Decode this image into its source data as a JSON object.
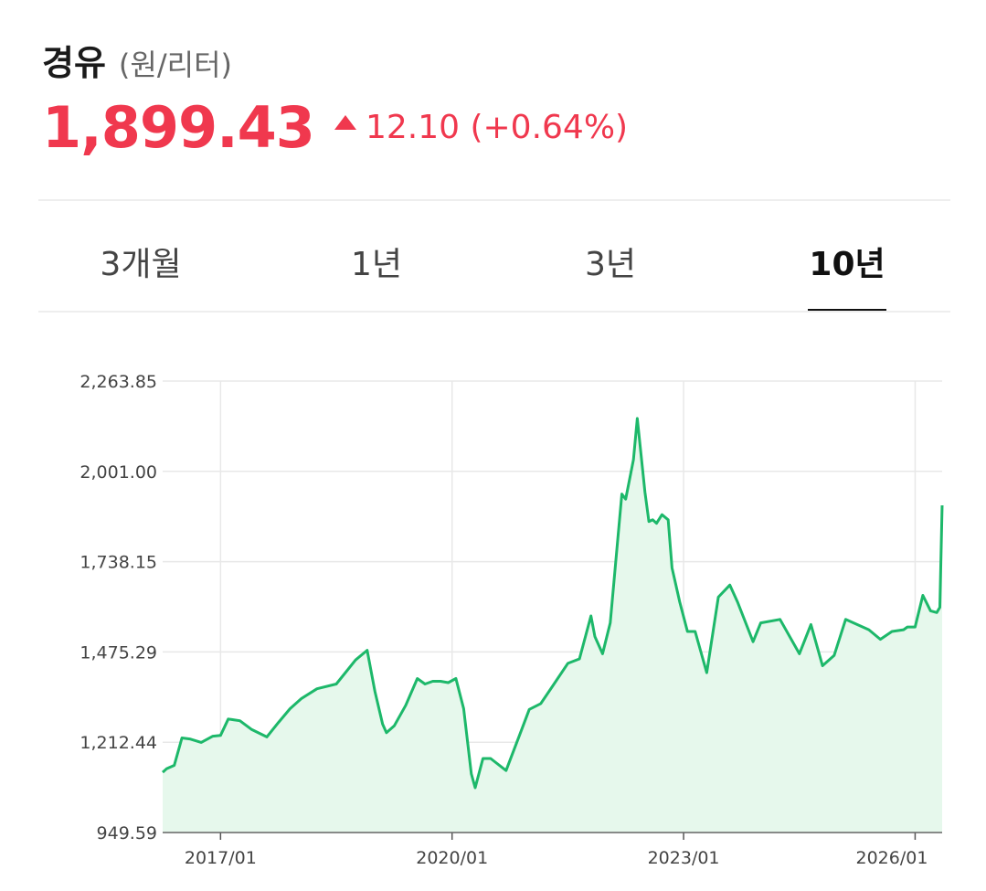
{
  "header": {
    "title": "경유",
    "unit": "(원/리터)",
    "price": "1,899.43",
    "change": "12.10 (+0.64%)"
  },
  "tabs": [
    {
      "label": "3개월",
      "active": false
    },
    {
      "label": "1년",
      "active": false
    },
    {
      "label": "3년",
      "active": false
    },
    {
      "label": "10년",
      "active": true
    }
  ],
  "colors": {
    "accent_up": "#f0384e",
    "line": "#1db86a",
    "fill": "#e6f8ec"
  },
  "chart_data": {
    "type": "area",
    "title": "",
    "xlabel": "",
    "ylabel": "",
    "ylim": [
      949.59,
      2263.85
    ],
    "xlim": [
      2016.25,
      2026.35
    ],
    "y_ticks": [
      "2,263.85",
      "2,001.00",
      "1,738.15",
      "1,475.29",
      "1,212.44",
      "949.59"
    ],
    "y_tick_values": [
      2263.85,
      2001.0,
      1738.15,
      1475.29,
      1212.44,
      949.59
    ],
    "x_ticks": [
      "2017/01",
      "2020/01",
      "2023/01",
      "2026/01"
    ],
    "x_tick_values": [
      2017.0,
      2020.0,
      2023.0,
      2026.0
    ],
    "grid": true,
    "series": [
      {
        "x": [
          2016.25,
          2016.3,
          2016.4,
          2016.5,
          2016.6,
          2016.75,
          2016.9,
          2017.0,
          2017.1,
          2017.25,
          2017.4,
          2017.6,
          2017.75,
          2017.9,
          2018.05,
          2018.25,
          2018.5,
          2018.75,
          2018.9,
          2019.0,
          2019.1,
          2019.15,
          2019.25,
          2019.4,
          2019.55,
          2019.65,
          2019.75,
          2019.85,
          2019.95,
          2020.05,
          2020.15,
          2020.25,
          2020.3,
          2020.4,
          2020.5,
          2020.7,
          2020.9,
          2021.0,
          2021.15,
          2021.3,
          2021.5,
          2021.65,
          2021.8,
          2021.85,
          2021.95,
          2022.05,
          2022.2,
          2022.25,
          2022.35,
          2022.4,
          2022.5,
          2022.55,
          2022.6,
          2022.65,
          2022.72,
          2022.8,
          2022.85,
          2022.95,
          2023.05,
          2023.15,
          2023.3,
          2023.45,
          2023.6,
          2023.7,
          2023.9,
          2024.0,
          2024.25,
          2024.5,
          2024.65,
          2024.8,
          2024.95,
          2025.1,
          2025.4,
          2025.55,
          2025.7,
          2025.85,
          2025.9,
          2026.0,
          2026.1,
          2026.2,
          2026.28,
          2026.32,
          2026.35
        ],
        "y": [
          1125,
          1135,
          1145,
          1225,
          1222,
          1212,
          1230,
          1232,
          1280,
          1275,
          1250,
          1228,
          1270,
          1310,
          1340,
          1368,
          1382,
          1452,
          1480,
          1360,
          1265,
          1240,
          1260,
          1320,
          1398,
          1382,
          1390,
          1390,
          1386,
          1398,
          1310,
          1120,
          1080,
          1165,
          1165,
          1130,
          1248,
          1308,
          1325,
          1375,
          1442,
          1455,
          1580,
          1520,
          1470,
          1560,
          1935,
          1920,
          2035,
          2155,
          1940,
          1855,
          1860,
          1850,
          1875,
          1860,
          1720,
          1620,
          1535,
          1535,
          1415,
          1635,
          1670,
          1620,
          1505,
          1560,
          1570,
          1470,
          1555,
          1435,
          1465,
          1570,
          1540,
          1512,
          1535,
          1540,
          1548,
          1548,
          1640,
          1595,
          1590,
          1605,
          1902
        ]
      }
    ]
  }
}
